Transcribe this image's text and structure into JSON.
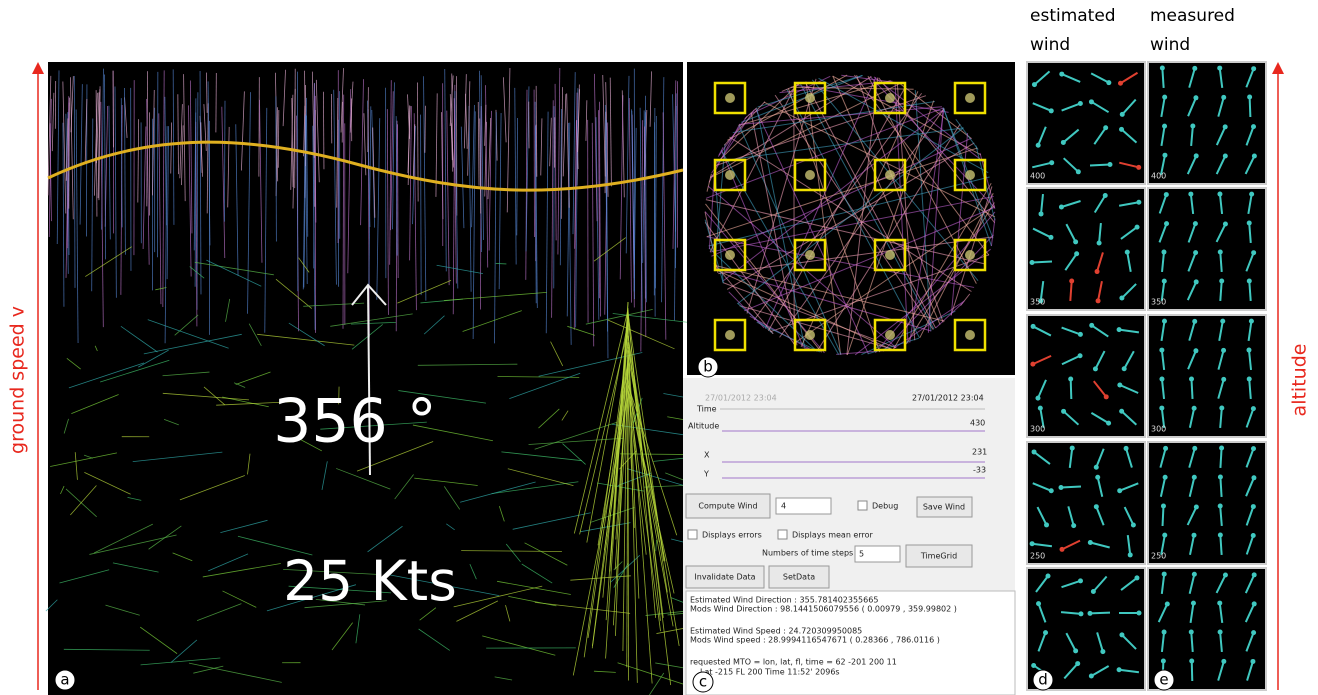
{
  "column_headers": [
    "estimated",
    "wind",
    "measured",
    "wind"
  ],
  "axis_labels": {
    "left": "ground speed v",
    "right": "altitude"
  },
  "panel_letters": [
    "a",
    "b",
    "c",
    "d",
    "e"
  ],
  "view_a": {
    "heading": "356 °",
    "speed": "25 Kts"
  },
  "controls": {
    "start_time": "27/01/2012 23:04",
    "end_time": "27/01/2012 23:04",
    "time_label": "Time",
    "altitude_label": "Altitude",
    "altitude_value": "430",
    "x_label": "X",
    "x_value": "231",
    "y_label": "Y",
    "y_value": "-33",
    "compute_wind": "Compute Wind",
    "compute_steps": "4",
    "debug": "Debug",
    "save_wind": "Save Wind",
    "displays_errors": "Displays errors",
    "displays_mean_error": "Displays mean error",
    "time_steps_label": "Numbers of time steps",
    "time_steps": "5",
    "time_grid": "TimeGrid",
    "invalidate_data": "Invalidate Data",
    "set_data": "SetData"
  },
  "output_lines": [
    "Estimated Wind Direction : 355.781402355665",
    "Mods Wind Direction : 98.1441506079556 ( 0.00979 , 359.99802 )",
    "Estimated Wind Speed : 24.720309950085",
    "Mods Wind speed : 28.9994116547671 ( 0.28366 , 786.0116 )",
    "requested MTO = lon, lat, fl, time = 62 -201 200 11",
    "Lat -215 FL 200 Time 11:52' 2096s"
  ],
  "altitude_labels": [
    "400",
    "350",
    "300",
    "250"
  ]
}
